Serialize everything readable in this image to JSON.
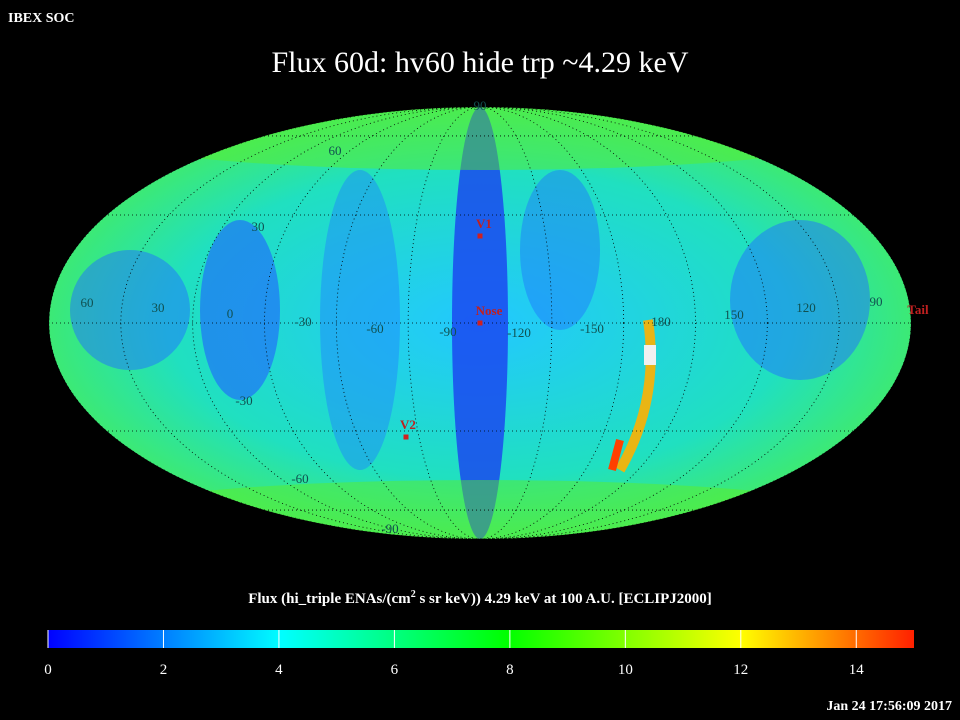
{
  "header": {
    "source": "IBEX SOC",
    "title": "Flux   60d: hv60 hide trp ~4.29 keV"
  },
  "map": {
    "labels": [
      "90",
      "60",
      "30",
      "60",
      "30",
      "0",
      "-30",
      "-60",
      "-90",
      "-120",
      "-150",
      "180",
      "150",
      "120",
      "90",
      "-30",
      "-60",
      "-90"
    ],
    "markers": [
      "V1",
      "Nose",
      "V2",
      "Tail"
    ]
  },
  "colorbar": {
    "label_parts": [
      "Flux (hi_triple ENAs/(cm",
      "2",
      " s sr keV))  4.29 keV at 100 A.U. [ECLIPJ2000]"
    ],
    "lim": [
      0,
      15
    ],
    "ticks": [
      0,
      2,
      4,
      6,
      8,
      10,
      12,
      14
    ]
  },
  "footer": {
    "timestamp": "Jan 24 17:56:09 2017"
  }
}
